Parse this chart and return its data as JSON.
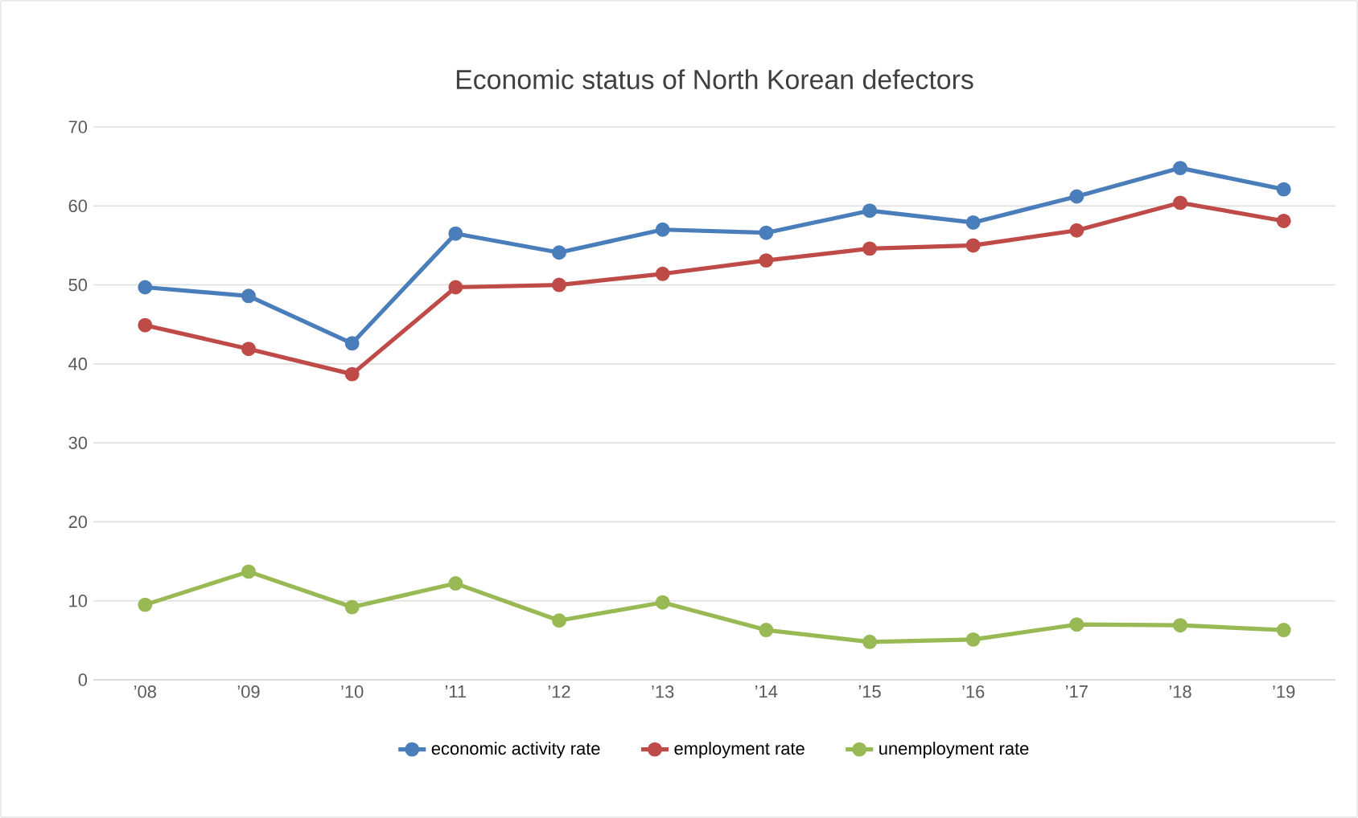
{
  "chart_data": {
    "type": "line",
    "title": "Economic status of North Korean defectors",
    "categories": [
      "’08",
      "’09",
      "’10",
      "’11",
      "’12",
      "’13",
      "’14",
      "’15",
      "’16",
      "’17",
      "’18",
      "’19"
    ],
    "series": [
      {
        "name": "economic activity rate",
        "color": "#4a7ebb",
        "values": [
          49.7,
          48.6,
          42.6,
          56.5,
          54.1,
          57.0,
          56.6,
          59.4,
          57.9,
          61.2,
          64.8,
          62.1
        ]
      },
      {
        "name": "employment rate",
        "color": "#be4b48",
        "values": [
          44.9,
          41.9,
          38.7,
          49.7,
          50.0,
          51.4,
          53.1,
          54.6,
          55.0,
          56.9,
          60.4,
          58.1
        ]
      },
      {
        "name": "unemployment rate",
        "color": "#98b954",
        "values": [
          9.5,
          13.7,
          9.2,
          12.2,
          7.5,
          9.8,
          6.3,
          4.8,
          5.1,
          7.0,
          6.9,
          6.3
        ]
      }
    ],
    "ylim": [
      0,
      70
    ],
    "yticks": [
      0,
      10,
      20,
      30,
      40,
      50,
      60,
      70
    ],
    "grid": "y",
    "legend": "bottom",
    "marker": "circle",
    "line_style": "solid"
  }
}
